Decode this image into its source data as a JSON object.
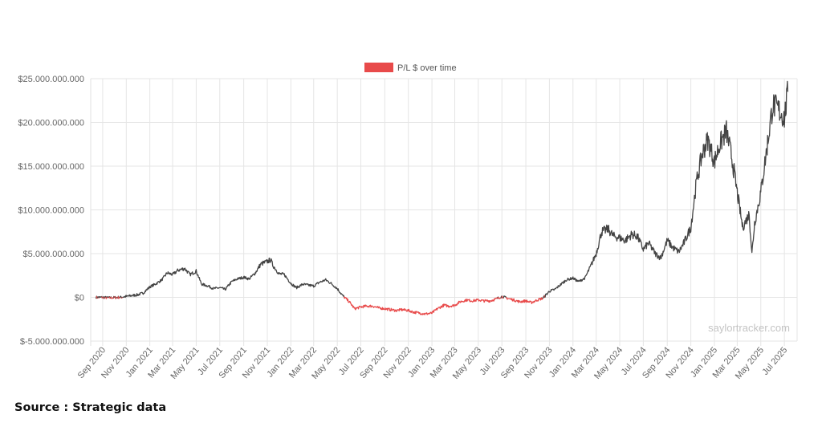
{
  "chart_data": {
    "type": "line",
    "legend": {
      "label": "P/L $ over time",
      "position": "top",
      "color": "#e84a4a"
    },
    "xlabel": "",
    "ylabel": "",
    "ylim": [
      -5000000000,
      25000000000
    ],
    "grid": true,
    "y_ticks": [
      {
        "value": 25000000000,
        "label": "$25.000.000.000"
      },
      {
        "value": 20000000000,
        "label": "$20.000.000.000"
      },
      {
        "value": 15000000000,
        "label": "$15.000.000.000"
      },
      {
        "value": 10000000000,
        "label": "$10.000.000.000"
      },
      {
        "value": 5000000000,
        "label": "$5.000.000.000"
      },
      {
        "value": 0,
        "label": "$0"
      },
      {
        "value": -5000000000,
        "label": "$-5.000.000.000"
      }
    ],
    "x_ticks": [
      "Sep 2020",
      "Nov 2020",
      "Jan 2021",
      "Mar 2021",
      "May 2021",
      "Jul 2021",
      "Sep 2021",
      "Nov 2021",
      "Jan 2022",
      "Mar 2022",
      "May 2022",
      "Jul 2022",
      "Sep 2022",
      "Nov 2022",
      "Jan 2023",
      "Mar 2023",
      "May 2023",
      "Jul 2023",
      "Sep 2023",
      "Nov 2023",
      "Jan 2024",
      "Mar 2024",
      "May 2024",
      "Jul 2024",
      "Sep 2024",
      "Nov 2024",
      "Jan 2025",
      "Mar 2025",
      "May 2025",
      "Jul 2025"
    ],
    "colors": {
      "positive": "#444444",
      "negative": "#e84a4a"
    },
    "series": [
      {
        "x": [
          "2020-08-15",
          "2020-09-01",
          "2020-09-15",
          "2020-10-01",
          "2020-10-15",
          "2020-11-01",
          "2020-11-15",
          "2020-12-01",
          "2020-12-15",
          "2021-01-01",
          "2021-01-15",
          "2021-02-01",
          "2021-02-15",
          "2021-03-01",
          "2021-03-15",
          "2021-04-01",
          "2021-04-15",
          "2021-05-01",
          "2021-05-15",
          "2021-06-01",
          "2021-06-15",
          "2021-07-01",
          "2021-07-15",
          "2021-08-01",
          "2021-08-15",
          "2021-09-01",
          "2021-09-15",
          "2021-10-01",
          "2021-10-15",
          "2021-11-01",
          "2021-11-10",
          "2021-11-15",
          "2021-12-01",
          "2021-12-15",
          "2022-01-01",
          "2022-01-15",
          "2022-02-01",
          "2022-02-15",
          "2022-03-01",
          "2022-03-15",
          "2022-04-01",
          "2022-04-15",
          "2022-05-01",
          "2022-05-15",
          "2022-06-01",
          "2022-06-15",
          "2022-07-01",
          "2022-07-15",
          "2022-08-01",
          "2022-08-15",
          "2022-09-01",
          "2022-09-15",
          "2022-10-01",
          "2022-10-15",
          "2022-11-01",
          "2022-11-15",
          "2022-12-01",
          "2022-12-15",
          "2023-01-01",
          "2023-01-15",
          "2023-02-01",
          "2023-02-15",
          "2023-03-01",
          "2023-03-15",
          "2023-04-01",
          "2023-04-15",
          "2023-05-01",
          "2023-05-15",
          "2023-06-01",
          "2023-06-15",
          "2023-07-01",
          "2023-07-15",
          "2023-08-01",
          "2023-08-15",
          "2023-09-01",
          "2023-09-15",
          "2023-10-01",
          "2023-10-15",
          "2023-11-01",
          "2023-11-15",
          "2023-12-01",
          "2023-12-15",
          "2024-01-01",
          "2024-01-15",
          "2024-02-01",
          "2024-02-15",
          "2024-03-01",
          "2024-03-15",
          "2024-04-01",
          "2024-04-15",
          "2024-05-01",
          "2024-05-15",
          "2024-06-01",
          "2024-06-15",
          "2024-07-01",
          "2024-07-15",
          "2024-08-01",
          "2024-08-15",
          "2024-09-01",
          "2024-09-15",
          "2024-10-01",
          "2024-10-15",
          "2024-11-01",
          "2024-11-15",
          "2024-12-01",
          "2024-12-15",
          "2025-01-01",
          "2025-01-15",
          "2025-02-01",
          "2025-02-15",
          "2025-03-01",
          "2025-03-15",
          "2025-04-01",
          "2025-04-08",
          "2025-04-15",
          "2025-05-01",
          "2025-05-15",
          "2025-06-01",
          "2025-06-15",
          "2025-07-01",
          "2025-07-10"
        ],
        "y": [
          0,
          0,
          -50000000,
          -30000000,
          0,
          100000000,
          200000000,
          300000000,
          500000000,
          1200000000,
          1500000000,
          2000000000,
          2800000000,
          2600000000,
          3100000000,
          3300000000,
          2600000000,
          3000000000,
          1500000000,
          1300000000,
          1000000000,
          1100000000,
          900000000,
          1800000000,
          2100000000,
          2300000000,
          2100000000,
          2800000000,
          3800000000,
          4100000000,
          4300000000,
          3700000000,
          2700000000,
          2600000000,
          1600000000,
          1100000000,
          1500000000,
          1400000000,
          1300000000,
          1700000000,
          2000000000,
          1600000000,
          1000000000,
          200000000,
          -500000000,
          -1300000000,
          -1100000000,
          -1000000000,
          -1000000000,
          -1200000000,
          -1300000000,
          -1400000000,
          -1500000000,
          -1400000000,
          -1500000000,
          -1700000000,
          -1800000000,
          -1900000000,
          -1800000000,
          -1300000000,
          -900000000,
          -1000000000,
          -900000000,
          -500000000,
          -300000000,
          -400000000,
          -300000000,
          -400000000,
          -400000000,
          -200000000,
          100000000,
          -100000000,
          -300000000,
          -500000000,
          -400000000,
          -600000000,
          -300000000,
          -100000000,
          700000000,
          900000000,
          1500000000,
          2000000000,
          2200000000,
          1800000000,
          2200000000,
          3500000000,
          5000000000,
          7500000000,
          7800000000,
          7000000000,
          6800000000,
          6500000000,
          7200000000,
          7000000000,
          5500000000,
          6200000000,
          5000000000,
          4500000000,
          6500000000,
          5700000000,
          5200000000,
          6300000000,
          8000000000,
          13000000000,
          16500000000,
          18000000000,
          15500000000,
          17500000000,
          19000000000,
          16000000000,
          12000000000,
          8000000000,
          9500000000,
          5000000000,
          8500000000,
          12000000000,
          16500000000,
          22000000000,
          21500000000,
          20500000000,
          23500000000
        ]
      }
    ]
  },
  "watermark": "saylortracker.com",
  "source": "Source : Strategic data"
}
